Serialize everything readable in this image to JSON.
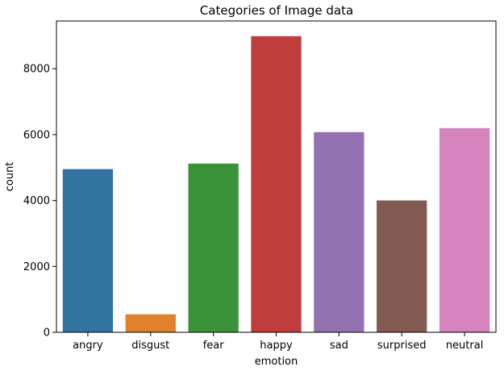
{
  "chart_data": {
    "type": "bar",
    "title": "Categories of Image data",
    "xlabel": "emotion",
    "ylabel": "count",
    "categories": [
      "angry",
      "disgust",
      "fear",
      "happy",
      "sad",
      "surprised",
      "neutral"
    ],
    "values": [
      4953,
      547,
      5121,
      8989,
      6077,
      4002,
      6198
    ],
    "ylim": [
      0,
      9450
    ],
    "yticks": [
      0,
      2000,
      4000,
      6000,
      8000
    ],
    "ytick_labels": [
      "0",
      "2000",
      "4000",
      "6000",
      "8000"
    ],
    "grid": false,
    "legend": "none",
    "colors": [
      "#3274a1",
      "#e1812c",
      "#3a923a",
      "#c03d3e",
      "#9372b2",
      "#845b53",
      "#d684bd"
    ]
  }
}
